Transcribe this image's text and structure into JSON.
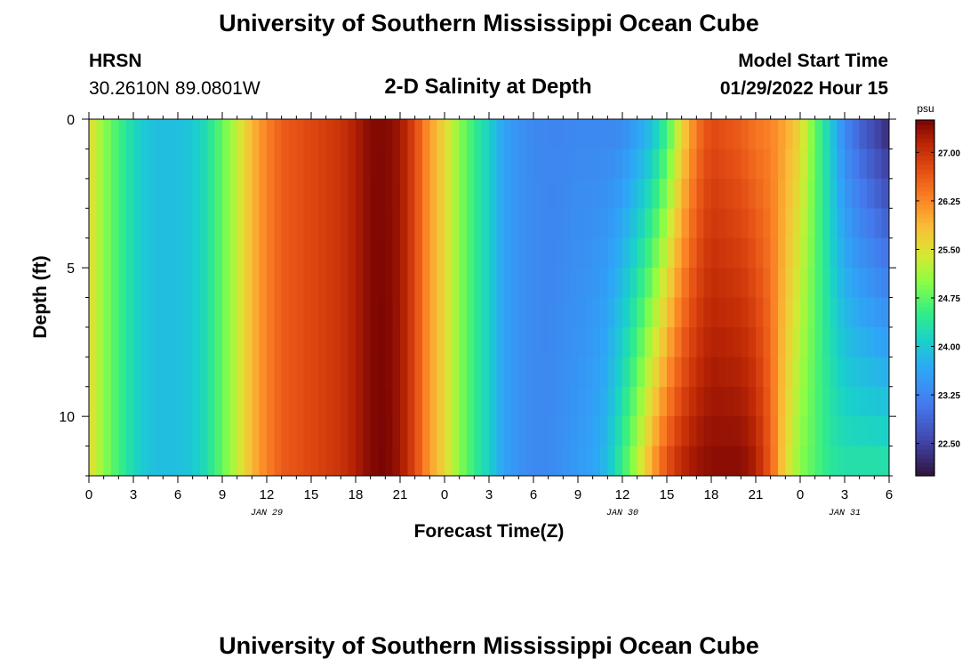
{
  "header": {
    "title": "University of Southern Mississippi Ocean Cube",
    "station": "HRSN",
    "coords": "30.2610N  89.0801W",
    "subtitle": "2-D Salinity at Depth",
    "model_label": "Model Start Time",
    "model_time": "01/29/2022 Hour 15"
  },
  "footer": {
    "title": "University of Southern Mississippi Ocean Cube"
  },
  "chart_data": {
    "type": "heatmap",
    "title": "2-D Salinity at Depth",
    "xlabel": "Forecast Time(Z)",
    "ylabel": "Depth (ft)",
    "x_tick_labels": [
      "0",
      "3",
      "6",
      "9",
      "12",
      "15",
      "18",
      "21",
      "0",
      "3",
      "6",
      "9",
      "12",
      "15",
      "18",
      "21",
      "0",
      "3",
      "6"
    ],
    "date_labels": [
      {
        "label": "JAN 29",
        "at_hour": 12
      },
      {
        "label": "JAN 30",
        "at_hour": 36
      },
      {
        "label": "JAN 31",
        "at_hour": 51
      }
    ],
    "x_range_hours": [
      0,
      54
    ],
    "y_range_ft": [
      0,
      12
    ],
    "y_ticks": [
      0,
      5,
      10
    ],
    "colorbar": {
      "unit": "psu",
      "range": [
        22.0,
        27.5
      ],
      "ticks": [
        "27.00",
        "26.25",
        "25.50",
        "24.75",
        "24.00",
        "23.25",
        "22.50"
      ]
    },
    "depth_rows": 12,
    "time_step_hours": 0.5,
    "surface_profile": [
      [
        0,
        25.6
      ],
      [
        1,
        25.0
      ],
      [
        2,
        24.6
      ],
      [
        3,
        24.2
      ],
      [
        4,
        23.95
      ],
      [
        5,
        23.9
      ],
      [
        6,
        23.9
      ],
      [
        7,
        24.0
      ],
      [
        8,
        24.3
      ],
      [
        9,
        24.8
      ],
      [
        10,
        25.3
      ],
      [
        11,
        25.9
      ],
      [
        12,
        26.3
      ],
      [
        13,
        26.6
      ],
      [
        14,
        26.7
      ],
      [
        15,
        26.8
      ],
      [
        16,
        26.9
      ],
      [
        17,
        27.0
      ],
      [
        18,
        27.2
      ],
      [
        19,
        27.45
      ],
      [
        20,
        27.45
      ],
      [
        21,
        27.3
      ],
      [
        22,
        26.8
      ],
      [
        23,
        26.1
      ],
      [
        24,
        25.6
      ],
      [
        25,
        25.0
      ],
      [
        26,
        24.5
      ],
      [
        27,
        24.1
      ],
      [
        28,
        23.6
      ],
      [
        29,
        23.4
      ],
      [
        30,
        23.3
      ],
      [
        31,
        23.25
      ],
      [
        32,
        23.25
      ],
      [
        33,
        23.3
      ],
      [
        34,
        23.3
      ],
      [
        35,
        23.3
      ],
      [
        36,
        23.35
      ],
      [
        37,
        23.6
      ],
      [
        38,
        23.95
      ],
      [
        39,
        24.6
      ],
      [
        40,
        25.6
      ],
      [
        41,
        26.4
      ],
      [
        42,
        26.8
      ],
      [
        43,
        26.7
      ],
      [
        44,
        26.6
      ],
      [
        45,
        26.4
      ],
      [
        46,
        26.3
      ],
      [
        47,
        26.0
      ],
      [
        48,
        25.6
      ],
      [
        49,
        24.8
      ],
      [
        50,
        24.1
      ],
      [
        51,
        23.3
      ],
      [
        52,
        22.9
      ],
      [
        53,
        22.6
      ],
      [
        54,
        22.3
      ]
    ],
    "bottom_profile": [
      [
        0,
        25.6
      ],
      [
        1,
        25.0
      ],
      [
        2,
        24.6
      ],
      [
        3,
        24.2
      ],
      [
        4,
        23.95
      ],
      [
        5,
        23.9
      ],
      [
        6,
        23.9
      ],
      [
        7,
        24.0
      ],
      [
        8,
        24.3
      ],
      [
        9,
        24.8
      ],
      [
        10,
        25.3
      ],
      [
        11,
        25.9
      ],
      [
        12,
        26.3
      ],
      [
        13,
        26.6
      ],
      [
        14,
        26.7
      ],
      [
        15,
        26.8
      ],
      [
        16,
        26.9
      ],
      [
        17,
        27.0
      ],
      [
        18,
        27.2
      ],
      [
        19,
        27.45
      ],
      [
        20,
        27.5
      ],
      [
        21,
        27.3
      ],
      [
        22,
        26.8
      ],
      [
        23,
        26.1
      ],
      [
        24,
        25.6
      ],
      [
        25,
        25.0
      ],
      [
        26,
        24.5
      ],
      [
        27,
        24.1
      ],
      [
        28,
        23.6
      ],
      [
        29,
        23.4
      ],
      [
        30,
        23.3
      ],
      [
        31,
        23.3
      ],
      [
        32,
        23.4
      ],
      [
        33,
        23.5
      ],
      [
        34,
        23.6
      ],
      [
        35,
        23.9
      ],
      [
        36,
        24.5
      ],
      [
        37,
        25.2
      ],
      [
        38,
        26.0
      ],
      [
        39,
        26.7
      ],
      [
        40,
        27.1
      ],
      [
        41,
        27.3
      ],
      [
        42,
        27.4
      ],
      [
        43,
        27.4
      ],
      [
        44,
        27.4
      ],
      [
        45,
        27.2
      ],
      [
        46,
        26.6
      ],
      [
        47,
        25.6
      ],
      [
        48,
        25.0
      ],
      [
        49,
        24.7
      ],
      [
        50,
        24.4
      ],
      [
        51,
        24.3
      ],
      [
        52,
        24.3
      ],
      [
        53,
        24.3
      ],
      [
        54,
        24.3
      ]
    ]
  }
}
